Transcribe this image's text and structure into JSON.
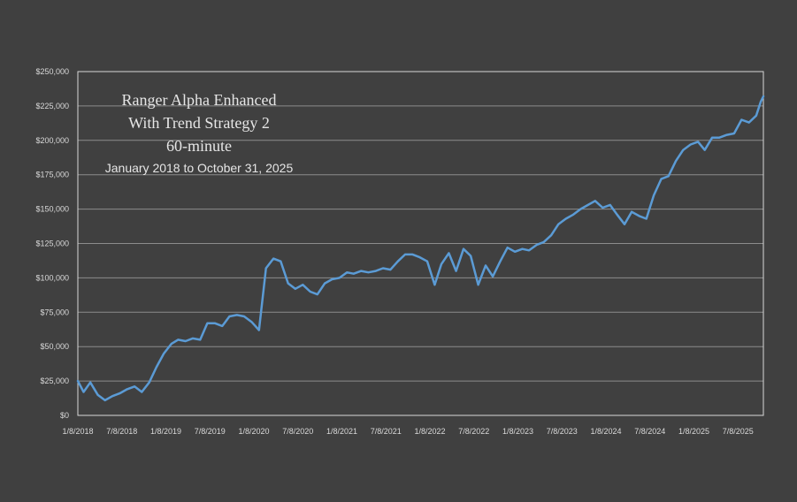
{
  "chart_data": {
    "type": "line",
    "title_lines": [
      "Ranger Alpha Enhanced",
      "With Trend Strategy 2",
      "60-minute"
    ],
    "subtitle": "January 2018 to October 31, 2025",
    "xlabel": "",
    "ylabel": "",
    "x_ticks": [
      "1/8/2018",
      "7/8/2018",
      "1/8/2019",
      "7/8/2019",
      "1/8/2020",
      "7/8/2020",
      "1/8/2021",
      "7/8/2021",
      "1/8/2022",
      "7/8/2022",
      "1/8/2023",
      "7/8/2023",
      "1/8/2024",
      "7/8/2024",
      "1/8/2025",
      "7/8/2025"
    ],
    "y_ticks": [
      "$0",
      "$25,000",
      "$50,000",
      "$75,000",
      "$100,000",
      "$125,000",
      "$150,000",
      "$175,000",
      "$200,000",
      "$225,000",
      "$250,000"
    ],
    "ylim": [
      0,
      250000
    ],
    "xlim": [
      "2018-01-08",
      "2025-10-31"
    ],
    "grid": "horizontal",
    "line_color": "#5b9bd5",
    "series": [
      {
        "x": [
          "2018-01-08",
          "2018-02-01",
          "2018-03-01",
          "2018-04-01",
          "2018-05-01",
          "2018-06-01",
          "2018-07-01",
          "2018-08-01",
          "2018-09-01",
          "2018-10-01",
          "2018-11-01",
          "2018-12-01",
          "2019-01-01",
          "2019-02-01",
          "2019-03-01",
          "2019-04-01",
          "2019-05-01",
          "2019-06-01",
          "2019-07-01",
          "2019-08-01",
          "2019-09-01",
          "2019-10-01",
          "2019-11-01",
          "2019-12-01",
          "2020-01-01",
          "2020-02-01",
          "2020-03-01",
          "2020-04-01",
          "2020-05-01",
          "2020-06-01",
          "2020-07-01",
          "2020-08-01",
          "2020-09-01",
          "2020-10-01",
          "2020-11-01",
          "2020-12-01",
          "2021-01-01",
          "2021-02-01",
          "2021-03-01",
          "2021-04-01",
          "2021-05-01",
          "2021-06-01",
          "2021-07-01",
          "2021-08-01",
          "2021-09-01",
          "2021-10-01",
          "2021-11-01",
          "2021-12-01",
          "2022-01-01",
          "2022-02-01",
          "2022-03-01",
          "2022-04-01",
          "2022-05-01",
          "2022-06-01",
          "2022-07-01",
          "2022-08-01",
          "2022-09-01",
          "2022-10-01",
          "2022-11-01",
          "2022-12-01",
          "2023-01-01",
          "2023-02-01",
          "2023-03-01",
          "2023-04-01",
          "2023-05-01",
          "2023-06-01",
          "2023-07-01",
          "2023-08-01",
          "2023-09-01",
          "2023-10-01",
          "2023-11-01",
          "2023-12-01",
          "2024-01-01",
          "2024-02-01",
          "2024-03-01",
          "2024-04-01",
          "2024-05-01",
          "2024-06-01",
          "2024-07-01",
          "2024-08-01",
          "2024-09-01",
          "2024-10-01",
          "2024-11-01",
          "2024-12-01",
          "2025-01-01",
          "2025-02-01",
          "2025-03-01",
          "2025-04-01",
          "2025-05-01",
          "2025-06-01",
          "2025-07-01",
          "2025-08-01",
          "2025-09-01",
          "2025-10-01",
          "2025-10-20",
          "2025-10-31"
        ],
        "values": [
          25000,
          17000,
          24000,
          15000,
          11000,
          14000,
          16000,
          19000,
          21000,
          17000,
          24000,
          35000,
          45000,
          52000,
          55000,
          54000,
          56000,
          55000,
          67000,
          67000,
          65000,
          72000,
          73000,
          72000,
          68000,
          62000,
          107000,
          114000,
          112000,
          96000,
          92000,
          95000,
          90000,
          88000,
          96000,
          99000,
          100000,
          104000,
          103000,
          105000,
          104000,
          105000,
          107000,
          106000,
          112000,
          117000,
          117000,
          115000,
          112000,
          95000,
          110000,
          118000,
          105000,
          121000,
          116000,
          95000,
          109000,
          101000,
          112000,
          122000,
          119000,
          121000,
          120000,
          124000,
          126000,
          131000,
          139000,
          143000,
          146000,
          150000,
          153000,
          156000,
          151000,
          153000,
          146000,
          139000,
          148000,
          145000,
          143000,
          160000,
          172000,
          174000,
          185000,
          193000,
          197000,
          199000,
          193000,
          202000,
          202000,
          204000,
          205000,
          215000,
          213000,
          218000,
          228000,
          232000
        ]
      }
    ]
  }
}
